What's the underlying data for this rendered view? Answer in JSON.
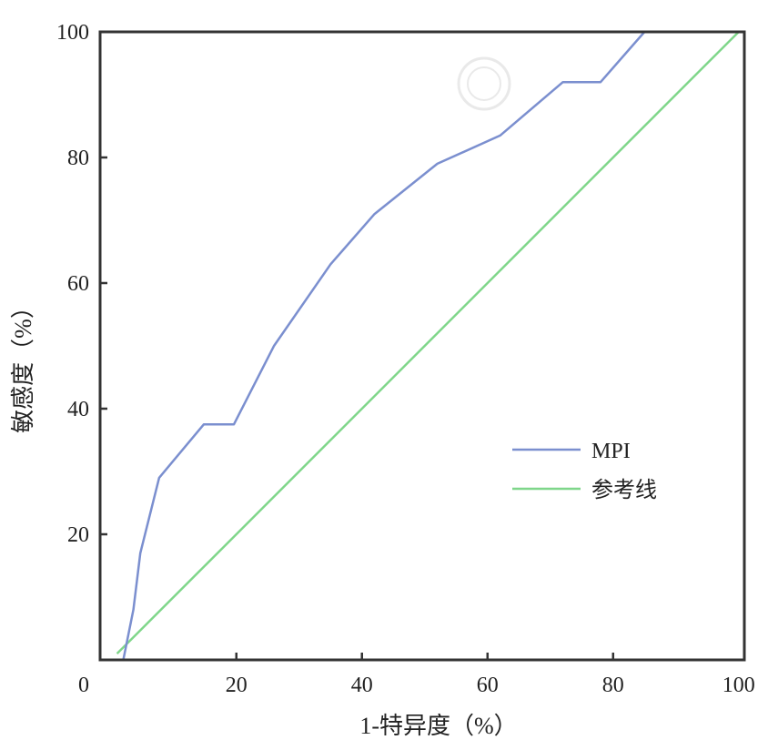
{
  "chart_data": {
    "type": "line",
    "title": "",
    "xlabel": "1-特异度（%）",
    "ylabel": "敏感度（%）",
    "xlim": [
      -1.7,
      100.9
    ],
    "ylim": [
      0,
      100
    ],
    "xticks": [
      "0",
      "20",
      "40",
      "60",
      "80",
      "100"
    ],
    "xtick_values": [
      0,
      20,
      40,
      60,
      80,
      100
    ],
    "yticks": [
      "20",
      "40",
      "60",
      "80",
      "100"
    ],
    "ytick_values": [
      20,
      40,
      60,
      80,
      100
    ],
    "grid": false,
    "legend_position": "center-right",
    "series": [
      {
        "name": "MPI",
        "color": "#7b8fcf",
        "x": [
          2,
          3.6,
          4.7,
          7.7,
          14.8,
          19.6,
          26,
          35,
          42,
          52,
          62,
          72,
          78,
          85,
          100
        ],
        "y": [
          0,
          8,
          17,
          29,
          37.5,
          37.5,
          50,
          63,
          71,
          79,
          83.5,
          92,
          92,
          100,
          100
        ]
      },
      {
        "name": "参考线",
        "color": "#7fd68a",
        "x": [
          1,
          100
        ],
        "y": [
          1,
          100
        ]
      }
    ]
  }
}
